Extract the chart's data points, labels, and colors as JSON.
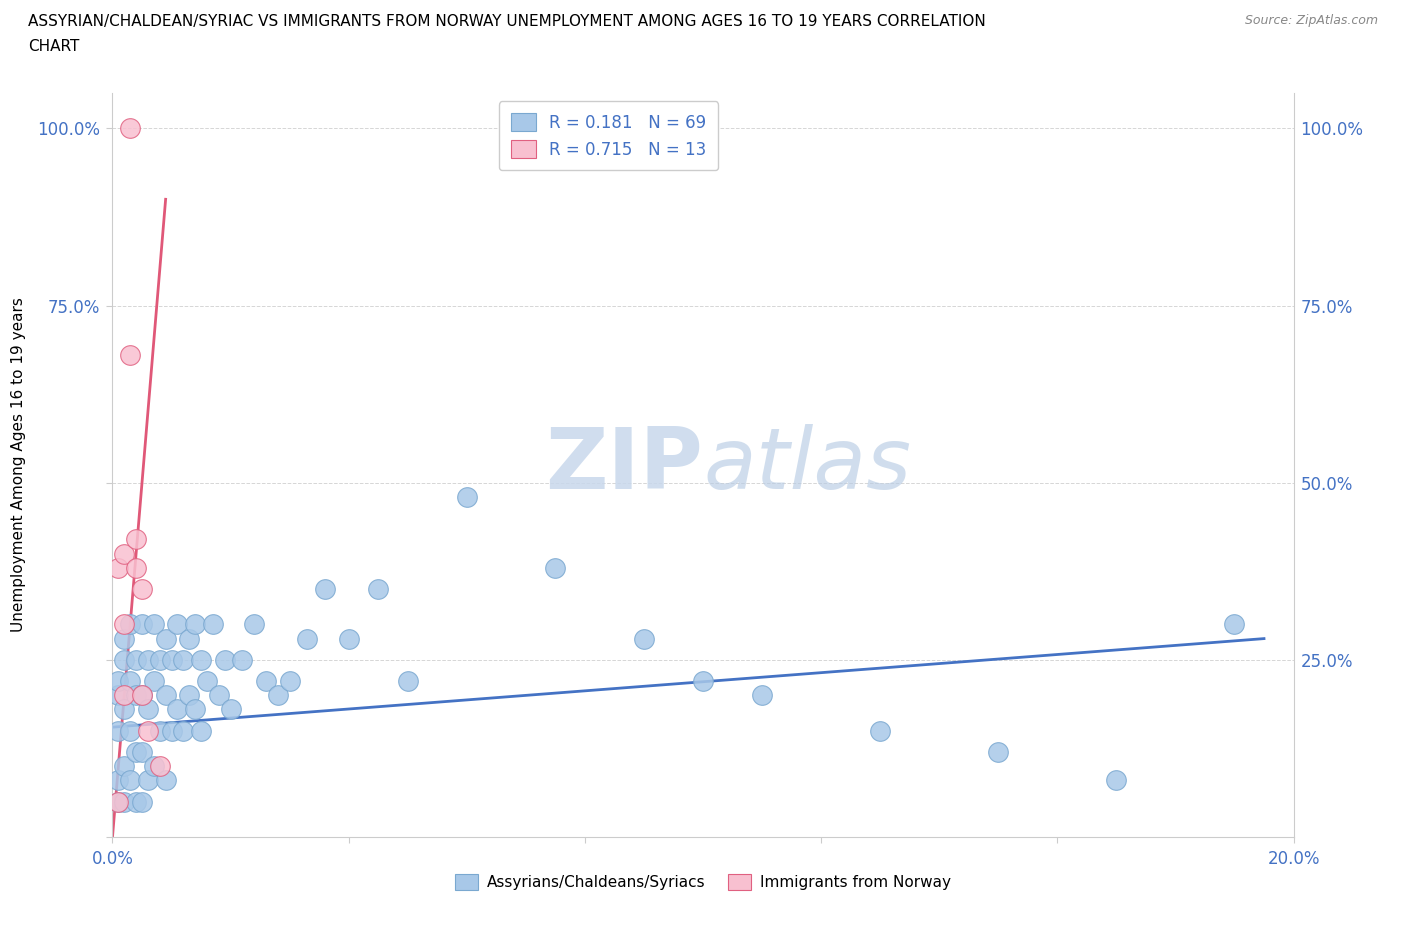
{
  "title_line1": "ASSYRIAN/CHALDEAN/SYRIAC VS IMMIGRANTS FROM NORWAY UNEMPLOYMENT AMONG AGES 16 TO 19 YEARS CORRELATION",
  "title_line2": "CHART",
  "source_text": "Source: ZipAtlas.com",
  "ylabel": "Unemployment Among Ages 16 to 19 years",
  "xlim": [
    0.0,
    0.2
  ],
  "ylim": [
    0.0,
    1.05
  ],
  "ytick_positions": [
    0.0,
    0.25,
    0.5,
    0.75,
    1.0
  ],
  "ytick_labels_left": [
    "",
    "",
    "",
    "75.0%",
    "100.0%"
  ],
  "ytick_labels_right": [
    "",
    "25.0%",
    "50.0%",
    "75.0%",
    "100.0%"
  ],
  "xtick_positions": [
    0.0,
    0.04,
    0.08,
    0.12,
    0.16,
    0.2
  ],
  "xtick_labels": [
    "0.0%",
    "",
    "",
    "",
    "",
    "20.0%"
  ],
  "watermark_zip": "ZIP",
  "watermark_atlas": "atlas",
  "blue_color": "#a8c8e8",
  "blue_edge_color": "#7aa8d0",
  "blue_line_color": "#4472c4",
  "pink_color": "#f8c0d0",
  "pink_edge_color": "#e06080",
  "pink_line_color": "#e05878",
  "R_blue": 0.181,
  "N_blue": 69,
  "R_pink": 0.715,
  "N_pink": 13,
  "legend_label_blue": "Assyrians/Chaldeans/Syriacs",
  "legend_label_pink": "Immigrants from Norway",
  "blue_x": [
    0.001,
    0.001,
    0.001,
    0.001,
    0.001,
    0.002,
    0.002,
    0.002,
    0.002,
    0.002,
    0.003,
    0.003,
    0.003,
    0.003,
    0.004,
    0.004,
    0.004,
    0.004,
    0.005,
    0.005,
    0.005,
    0.005,
    0.006,
    0.006,
    0.006,
    0.007,
    0.007,
    0.007,
    0.008,
    0.008,
    0.009,
    0.009,
    0.009,
    0.01,
    0.01,
    0.011,
    0.011,
    0.012,
    0.012,
    0.013,
    0.013,
    0.014,
    0.014,
    0.015,
    0.015,
    0.016,
    0.017,
    0.018,
    0.019,
    0.02,
    0.022,
    0.024,
    0.026,
    0.028,
    0.03,
    0.033,
    0.036,
    0.04,
    0.045,
    0.05,
    0.06,
    0.075,
    0.09,
    0.1,
    0.11,
    0.13,
    0.15,
    0.17,
    0.19
  ],
  "blue_y": [
    0.2,
    0.15,
    0.08,
    0.05,
    0.22,
    0.25,
    0.18,
    0.1,
    0.05,
    0.28,
    0.22,
    0.15,
    0.08,
    0.3,
    0.2,
    0.12,
    0.05,
    0.25,
    0.3,
    0.2,
    0.12,
    0.05,
    0.25,
    0.18,
    0.08,
    0.3,
    0.22,
    0.1,
    0.25,
    0.15,
    0.28,
    0.2,
    0.08,
    0.25,
    0.15,
    0.3,
    0.18,
    0.25,
    0.15,
    0.28,
    0.2,
    0.3,
    0.18,
    0.25,
    0.15,
    0.22,
    0.3,
    0.2,
    0.25,
    0.18,
    0.25,
    0.3,
    0.22,
    0.2,
    0.22,
    0.28,
    0.35,
    0.28,
    0.35,
    0.22,
    0.48,
    0.38,
    0.28,
    0.22,
    0.2,
    0.15,
    0.12,
    0.08,
    0.3
  ],
  "pink_x": [
    0.001,
    0.001,
    0.002,
    0.002,
    0.002,
    0.003,
    0.003,
    0.004,
    0.004,
    0.005,
    0.005,
    0.006,
    0.008
  ],
  "pink_y": [
    0.05,
    0.38,
    0.2,
    0.3,
    0.4,
    1.0,
    0.68,
    0.38,
    0.42,
    0.35,
    0.2,
    0.15,
    0.1
  ],
  "blue_trend_x": [
    0.0,
    0.195
  ],
  "blue_trend_y": [
    0.155,
    0.28
  ],
  "pink_trend_x": [
    0.0,
    0.009
  ],
  "pink_trend_y": [
    0.0,
    0.9
  ]
}
